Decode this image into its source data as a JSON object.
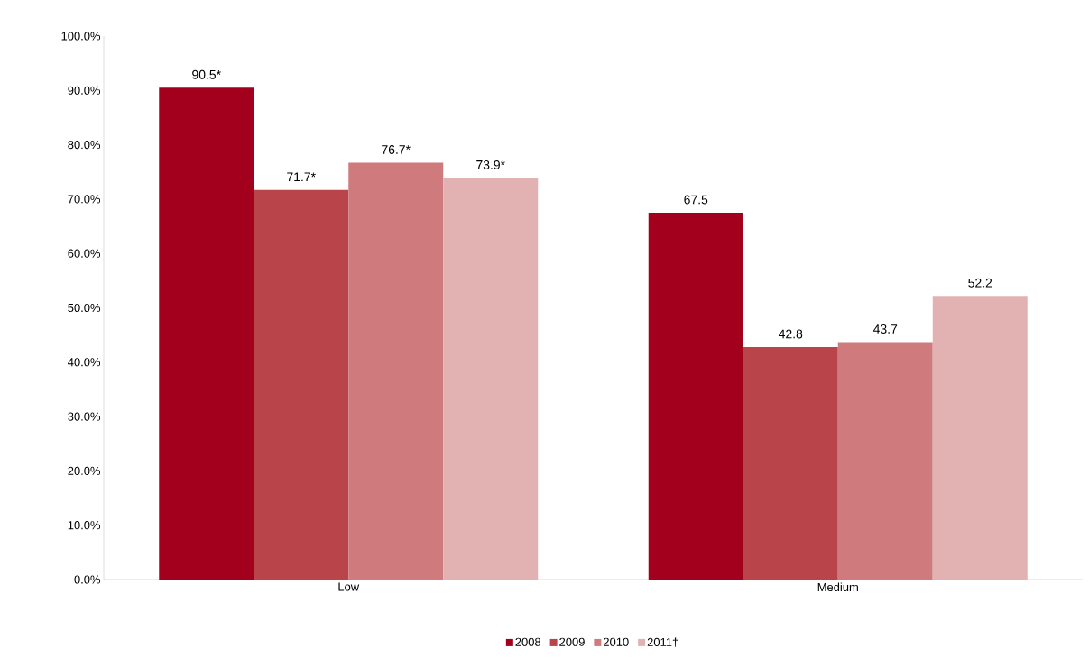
{
  "chart_data": {
    "type": "bar",
    "categories": [
      "Low",
      "Medium"
    ],
    "series": [
      {
        "name": "2008",
        "color": "#a3001e",
        "values": [
          90.5,
          67.5
        ],
        "value_labels": [
          "90.5*",
          "67.5"
        ]
      },
      {
        "name": "2009",
        "color": "#b9444a",
        "values": [
          71.7,
          42.8
        ],
        "value_labels": [
          "71.7*",
          "42.8"
        ]
      },
      {
        "name": "2010",
        "color": "#cf7a7c",
        "values": [
          76.7,
          43.7
        ],
        "value_labels": [
          "76.7*",
          "43.7"
        ]
      },
      {
        "name": "2011†",
        "color": "#e2b2b2",
        "values": [
          73.9,
          52.2
        ],
        "value_labels": [
          "73.9*",
          "52.2"
        ]
      }
    ],
    "ylim": [
      0,
      100
    ],
    "yticks": [
      {
        "value": 0,
        "label": "0.0%"
      },
      {
        "value": 10,
        "label": "10.0%"
      },
      {
        "value": 20,
        "label": "20.0%"
      },
      {
        "value": 30,
        "label": "30.0%"
      },
      {
        "value": 40,
        "label": "40.0%"
      },
      {
        "value": 50,
        "label": "50.0%"
      },
      {
        "value": 60,
        "label": "60.0%"
      },
      {
        "value": 70,
        "label": "70.0%"
      },
      {
        "value": 80,
        "label": "80.0%"
      },
      {
        "value": 90,
        "label": "90.0%"
      },
      {
        "value": 100,
        "label": "100.0%"
      }
    ],
    "legend": "bottom",
    "grid": false
  }
}
